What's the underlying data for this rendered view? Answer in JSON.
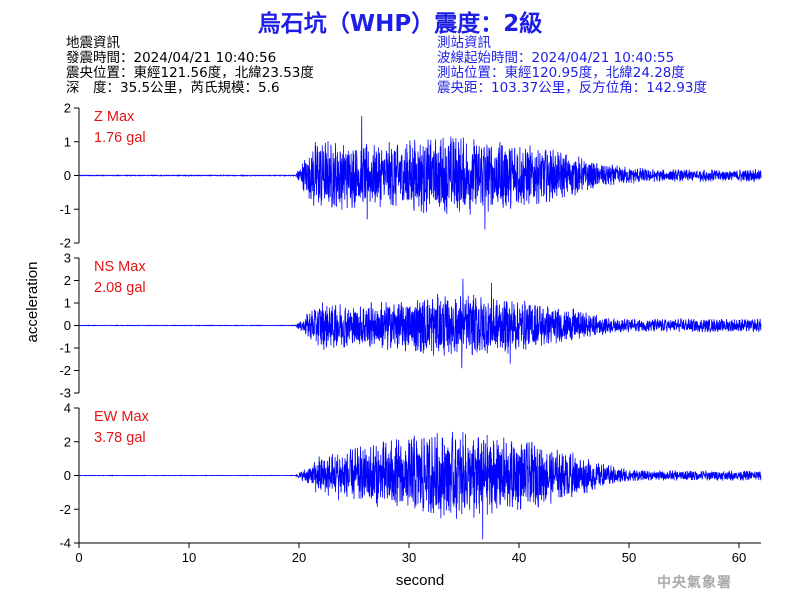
{
  "title": "烏石坑（WHP）震度：2級",
  "earthquake_info": {
    "heading": "地震資訊",
    "origin_time": "發震時間：2024/04/21 10:40:56",
    "epicenter": "震央位置：東經121.56度，北緯23.53度",
    "depth_magnitude": "深　度：35.5公里，芮氏規模：5.6"
  },
  "station_info": {
    "heading": "測站資訊",
    "wave_start": "波線起始時間：2024/04/21 10:40:55",
    "station_location": "測站位置：東經120.95度，北緯24.28度",
    "distance_azimuth": "震央距：103.37公里，反方位角：142.93度"
  },
  "credit": "中央氣象署",
  "colors": {
    "title": "#1e1ee6",
    "trace": "#0000ff",
    "max_label": "#e61414",
    "axis": "#000000",
    "credit": "#a9a9a9"
  },
  "chart_data": {
    "type": "line",
    "xlabel": "second",
    "ylabel": "acceleration",
    "xlim": [
      0,
      62
    ],
    "xticks": [
      0,
      10,
      20,
      30,
      40,
      50,
      60
    ],
    "traces": [
      {
        "component": "Z",
        "max_label": "Z Max",
        "max_value": "1.76 gal",
        "ylim": [
          -2,
          2
        ],
        "yticks": [
          -2,
          -1,
          0,
          1,
          2
        ],
        "envelope": {
          "onset": 19.7,
          "pre_peak": 0.05,
          "rise_end": 21.5,
          "peaks": [
            [
              25.7,
              1.76
            ],
            [
              36.9,
              -1.6
            ],
            [
              34.0,
              1.1
            ],
            [
              26.2,
              -1.3
            ]
          ],
          "early_amp": 0.9,
          "late_amp": 0.15
        }
      },
      {
        "component": "NS",
        "max_label": "NS Max",
        "max_value": "2.08 gal",
        "ylim": [
          -3,
          3
        ],
        "yticks": [
          -3,
          -2,
          -1,
          0,
          1,
          2,
          3
        ],
        "envelope": {
          "onset": 19.7,
          "pre_peak": 0.05,
          "rise_end": 22.0,
          "peaks": [
            [
              34.9,
              2.08
            ],
            [
              34.8,
              -1.9
            ],
            [
              37.5,
              1.9
            ],
            [
              39.2,
              -1.7
            ]
          ],
          "early_amp": 0.9,
          "late_amp": 0.25
        }
      },
      {
        "component": "EW",
        "max_label": "EW Max",
        "max_value": "3.78 gal",
        "ylim": [
          -4,
          4
        ],
        "yticks": [
          -4,
          -2,
          0,
          2,
          4
        ],
        "envelope": {
          "onset": 19.7,
          "pre_peak": 0.05,
          "rise_end": 21.5,
          "peaks": [
            [
              36.7,
              -3.78
            ],
            [
              37.1,
              2.4
            ],
            [
              35.9,
              -2.5
            ],
            [
              38.0,
              2.1
            ]
          ],
          "early_amp": 0.7,
          "late_amp": 0.25
        }
      }
    ]
  }
}
